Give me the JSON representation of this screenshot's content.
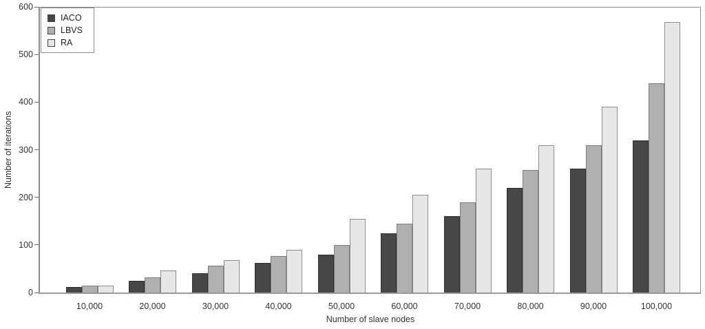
{
  "figure": {
    "background": "#ffffff",
    "axis_color": "#8f8f8f",
    "text_color": "#333333"
  },
  "chart_data": {
    "type": "bar",
    "title": "",
    "xlabel": "Number of slave nodes",
    "ylabel": "Number of iterations",
    "categories": [
      "10,000",
      "20,000",
      "30,000",
      "40,000",
      "50,000",
      "60,000",
      "70,000",
      "80,000",
      "90,000",
      "100,000"
    ],
    "series": [
      {
        "name": "IACO",
        "fill": "#474747",
        "border": "#2f2f2f",
        "values": [
          12,
          25,
          40,
          62,
          80,
          125,
          160,
          220,
          260,
          320
        ]
      },
      {
        "name": "LBVS",
        "fill": "#b0b0b0",
        "border": "#7d7d7d",
        "values": [
          14,
          32,
          56,
          77,
          100,
          145,
          190,
          258,
          310,
          440
        ]
      },
      {
        "name": "RA",
        "fill": "#e7e7e7",
        "border": "#8c8c8c",
        "values": [
          15,
          46,
          68,
          89,
          155,
          205,
          260,
          310,
          390,
          568
        ]
      }
    ],
    "ylim": [
      0,
      600
    ],
    "yticks": [
      0,
      100,
      200,
      300,
      400,
      500,
      600
    ],
    "legend_position": "top-left",
    "grid": false
  }
}
